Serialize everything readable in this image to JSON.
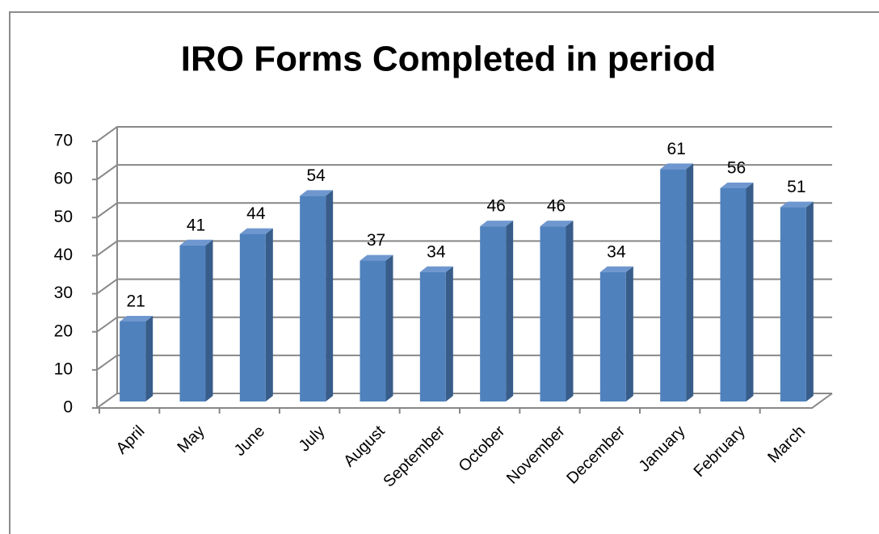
{
  "chart_data": {
    "type": "bar",
    "title": "IRO Forms Completed in period",
    "categories": [
      "April",
      "May",
      "June",
      "July",
      "August",
      "September",
      "October",
      "November",
      "December",
      "January",
      "February",
      "March"
    ],
    "values": [
      21,
      41,
      44,
      54,
      37,
      34,
      46,
      46,
      34,
      61,
      56,
      51
    ],
    "color": "#4f81bd",
    "ylim": [
      0,
      70
    ],
    "yticks": [
      0,
      10,
      20,
      30,
      40,
      50,
      60,
      70
    ],
    "grid": true
  }
}
